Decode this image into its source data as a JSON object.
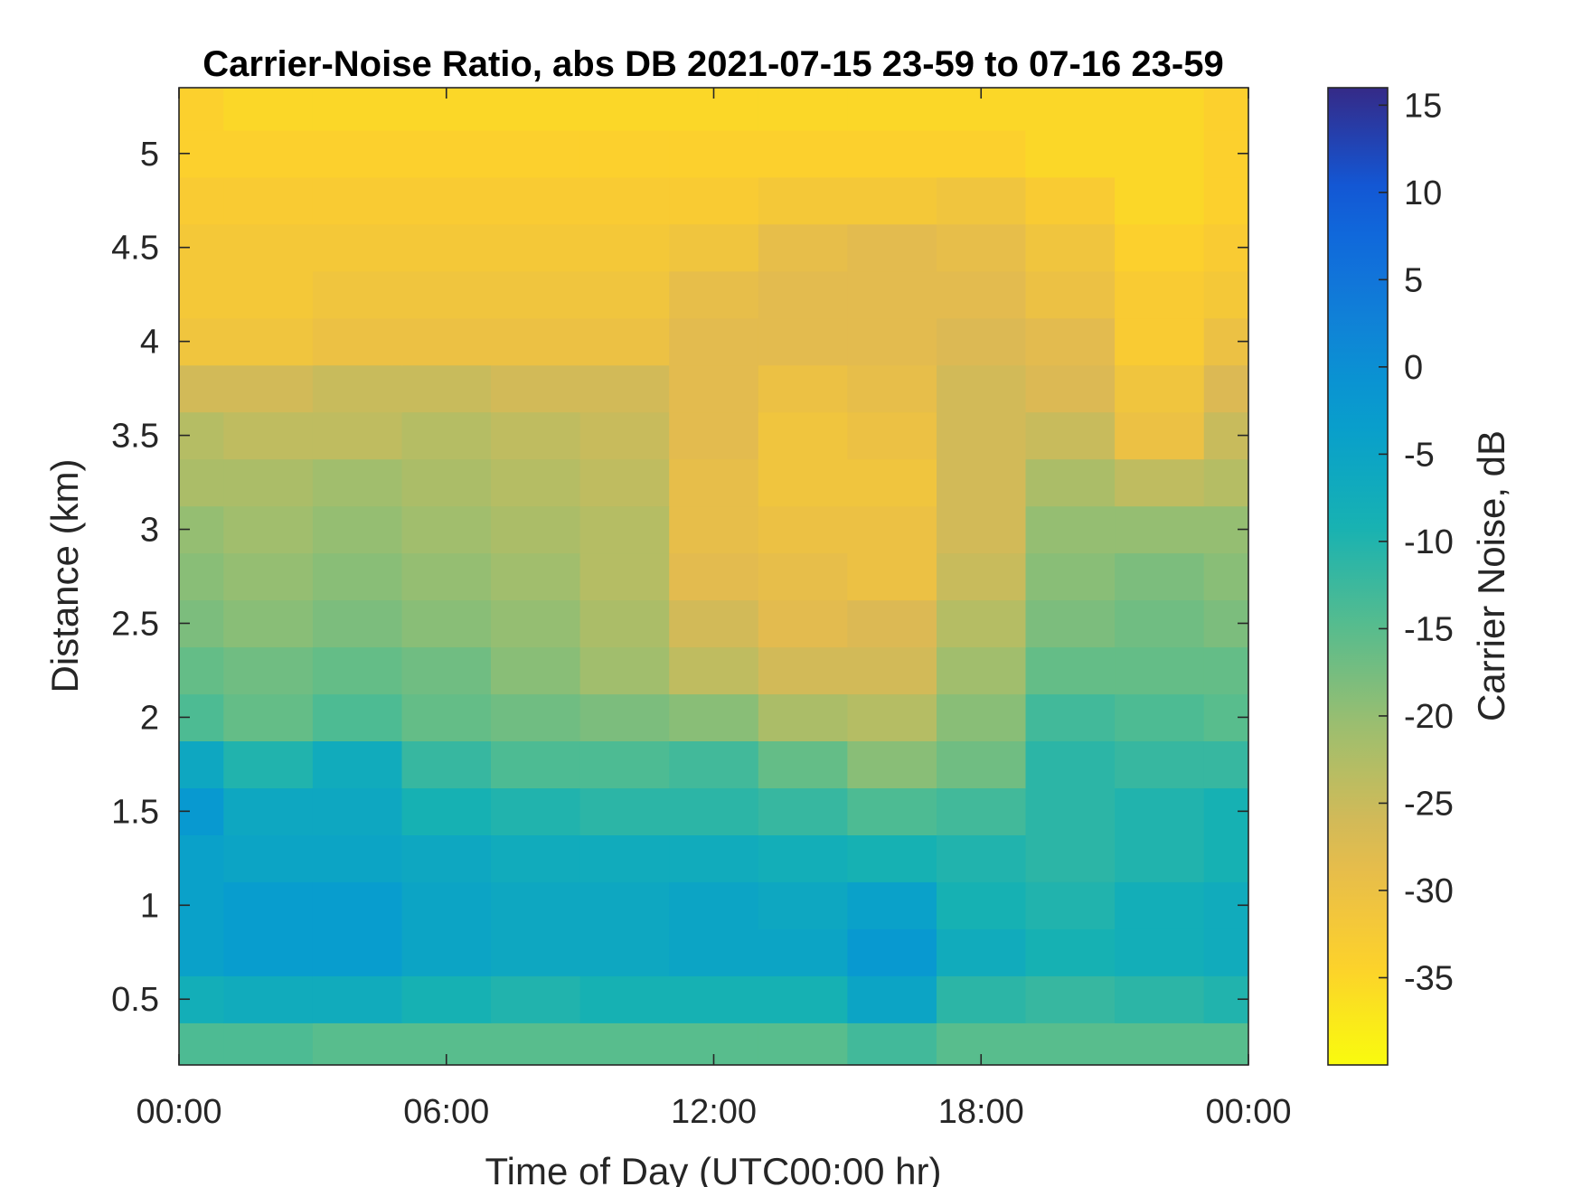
{
  "chart_data": {
    "type": "heatmap",
    "title": "Carrier-Noise Ratio, abs DB 2021-07-15 23-59 to 07-16 23-59",
    "xlabel": "Time of Day (UTC00:00 hr)",
    "ylabel": "Distance (km)",
    "colorbar_label": "Carrier Noise, dB",
    "colormap": "parula",
    "xlim_hours": [
      0,
      24
    ],
    "ylim_km": [
      0.15,
      5.35
    ],
    "clim_db": [
      -40,
      16
    ],
    "x_ticks": [
      {
        "value": 0,
        "label": "00:00"
      },
      {
        "value": 6,
        "label": "06:00"
      },
      {
        "value": 12,
        "label": "12:00"
      },
      {
        "value": 18,
        "label": "18:00"
      },
      {
        "value": 24,
        "label": "00:00"
      }
    ],
    "y_ticks": [
      {
        "value": 0.5,
        "label": "0.5"
      },
      {
        "value": 1,
        "label": "1"
      },
      {
        "value": 1.5,
        "label": "1.5"
      },
      {
        "value": 2,
        "label": "2"
      },
      {
        "value": 2.5,
        "label": "2.5"
      },
      {
        "value": 3,
        "label": "3"
      },
      {
        "value": 3.5,
        "label": "3.5"
      },
      {
        "value": 4,
        "label": "4"
      },
      {
        "value": 4.5,
        "label": "4.5"
      },
      {
        "value": 5,
        "label": "5"
      }
    ],
    "colorbar_ticks": [
      {
        "value": 15,
        "label": "15"
      },
      {
        "value": 10,
        "label": "10"
      },
      {
        "value": 5,
        "label": "5"
      },
      {
        "value": 0,
        "label": "0"
      },
      {
        "value": -5,
        "label": "-5"
      },
      {
        "value": -10,
        "label": "-10"
      },
      {
        "value": -15,
        "label": "-15"
      },
      {
        "value": -20,
        "label": "-20"
      },
      {
        "value": -25,
        "label": "-25"
      },
      {
        "value": -30,
        "label": "-30"
      },
      {
        "value": -35,
        "label": "-35"
      }
    ],
    "time_hours": [
      0,
      2,
      4,
      6,
      8,
      10,
      12,
      14,
      16,
      18,
      20,
      22,
      24
    ],
    "distance_km": [
      0.25,
      0.5,
      0.75,
      1.0,
      1.25,
      1.5,
      1.75,
      2.0,
      2.25,
      2.5,
      2.75,
      3.0,
      3.25,
      3.5,
      3.75,
      4.0,
      4.25,
      4.5,
      4.75,
      5.0,
      5.25
    ],
    "carrier_noise_db": [
      [
        -14,
        -14,
        -15,
        -15,
        -15,
        -15,
        -15,
        -15,
        -13,
        -15,
        -15,
        -15,
        -15
      ],
      [
        -8,
        -7,
        -7,
        -9,
        -10,
        -9,
        -9,
        -9,
        -5,
        -11,
        -12,
        -11,
        -10
      ],
      [
        -4,
        -3,
        -3,
        -5,
        -6,
        -6,
        -5,
        -5,
        -2,
        -7,
        -9,
        -8,
        -7
      ],
      [
        -4,
        -3,
        -3,
        -5,
        -6,
        -6,
        -5,
        -6,
        -4,
        -9,
        -10,
        -8,
        -7
      ],
      [
        -4,
        -5,
        -5,
        -6,
        -7,
        -7,
        -7,
        -8,
        -9,
        -10,
        -11,
        -10,
        -9
      ],
      [
        -2,
        -6,
        -6,
        -9,
        -10,
        -11,
        -11,
        -12,
        -14,
        -13,
        -11,
        -10,
        -9
      ],
      [
        -6,
        -10,
        -7,
        -12,
        -14,
        -14,
        -13,
        -16,
        -19,
        -17,
        -11,
        -12,
        -12
      ],
      [
        -14,
        -16,
        -14,
        -16,
        -17,
        -18,
        -19,
        -22,
        -23,
        -19,
        -13,
        -14,
        -15
      ],
      [
        -16,
        -17,
        -16,
        -17,
        -19,
        -21,
        -24,
        -26,
        -26,
        -21,
        -16,
        -16,
        -16
      ],
      [
        -18,
        -19,
        -18,
        -19,
        -20,
        -22,
        -26,
        -28,
        -27,
        -23,
        -18,
        -17,
        -18
      ],
      [
        -19,
        -20,
        -19,
        -20,
        -21,
        -23,
        -28,
        -29,
        -30,
        -25,
        -19,
        -18,
        -19
      ],
      [
        -20,
        -21,
        -20,
        -21,
        -22,
        -23,
        -29,
        -30,
        -30,
        -26,
        -20,
        -20,
        -20
      ],
      [
        -22,
        -22,
        -21,
        -22,
        -23,
        -24,
        -29,
        -31,
        -31,
        -26,
        -22,
        -24,
        -23
      ],
      [
        -23,
        -24,
        -24,
        -23,
        -24,
        -25,
        -28,
        -31,
        -30,
        -26,
        -25,
        -30,
        -25
      ],
      [
        -26,
        -26,
        -25,
        -25,
        -26,
        -26,
        -28,
        -30,
        -29,
        -26,
        -27,
        -31,
        -27
      ],
      [
        -31,
        -31,
        -30,
        -30,
        -30,
        -30,
        -28,
        -28,
        -28,
        -27,
        -28,
        -33,
        -30
      ],
      [
        -32,
        -32,
        -31,
        -31,
        -31,
        -31,
        -29,
        -28,
        -28,
        -28,
        -30,
        -33,
        -32
      ],
      [
        -32,
        -32,
        -32,
        -32,
        -32,
        -32,
        -31,
        -29,
        -28,
        -29,
        -31,
        -34,
        -33
      ],
      [
        -33,
        -33,
        -33,
        -33,
        -33,
        -33,
        -33,
        -32,
        -32,
        -31,
        -33,
        -35,
        -34
      ],
      [
        -34,
        -34,
        -34,
        -34,
        -34,
        -34,
        -34,
        -34,
        -34,
        -34,
        -35,
        -35,
        -34
      ],
      [
        -34,
        -35,
        -35,
        -35,
        -35,
        -35,
        -35,
        -35,
        -35,
        -35,
        -35,
        -35,
        -34
      ]
    ]
  }
}
